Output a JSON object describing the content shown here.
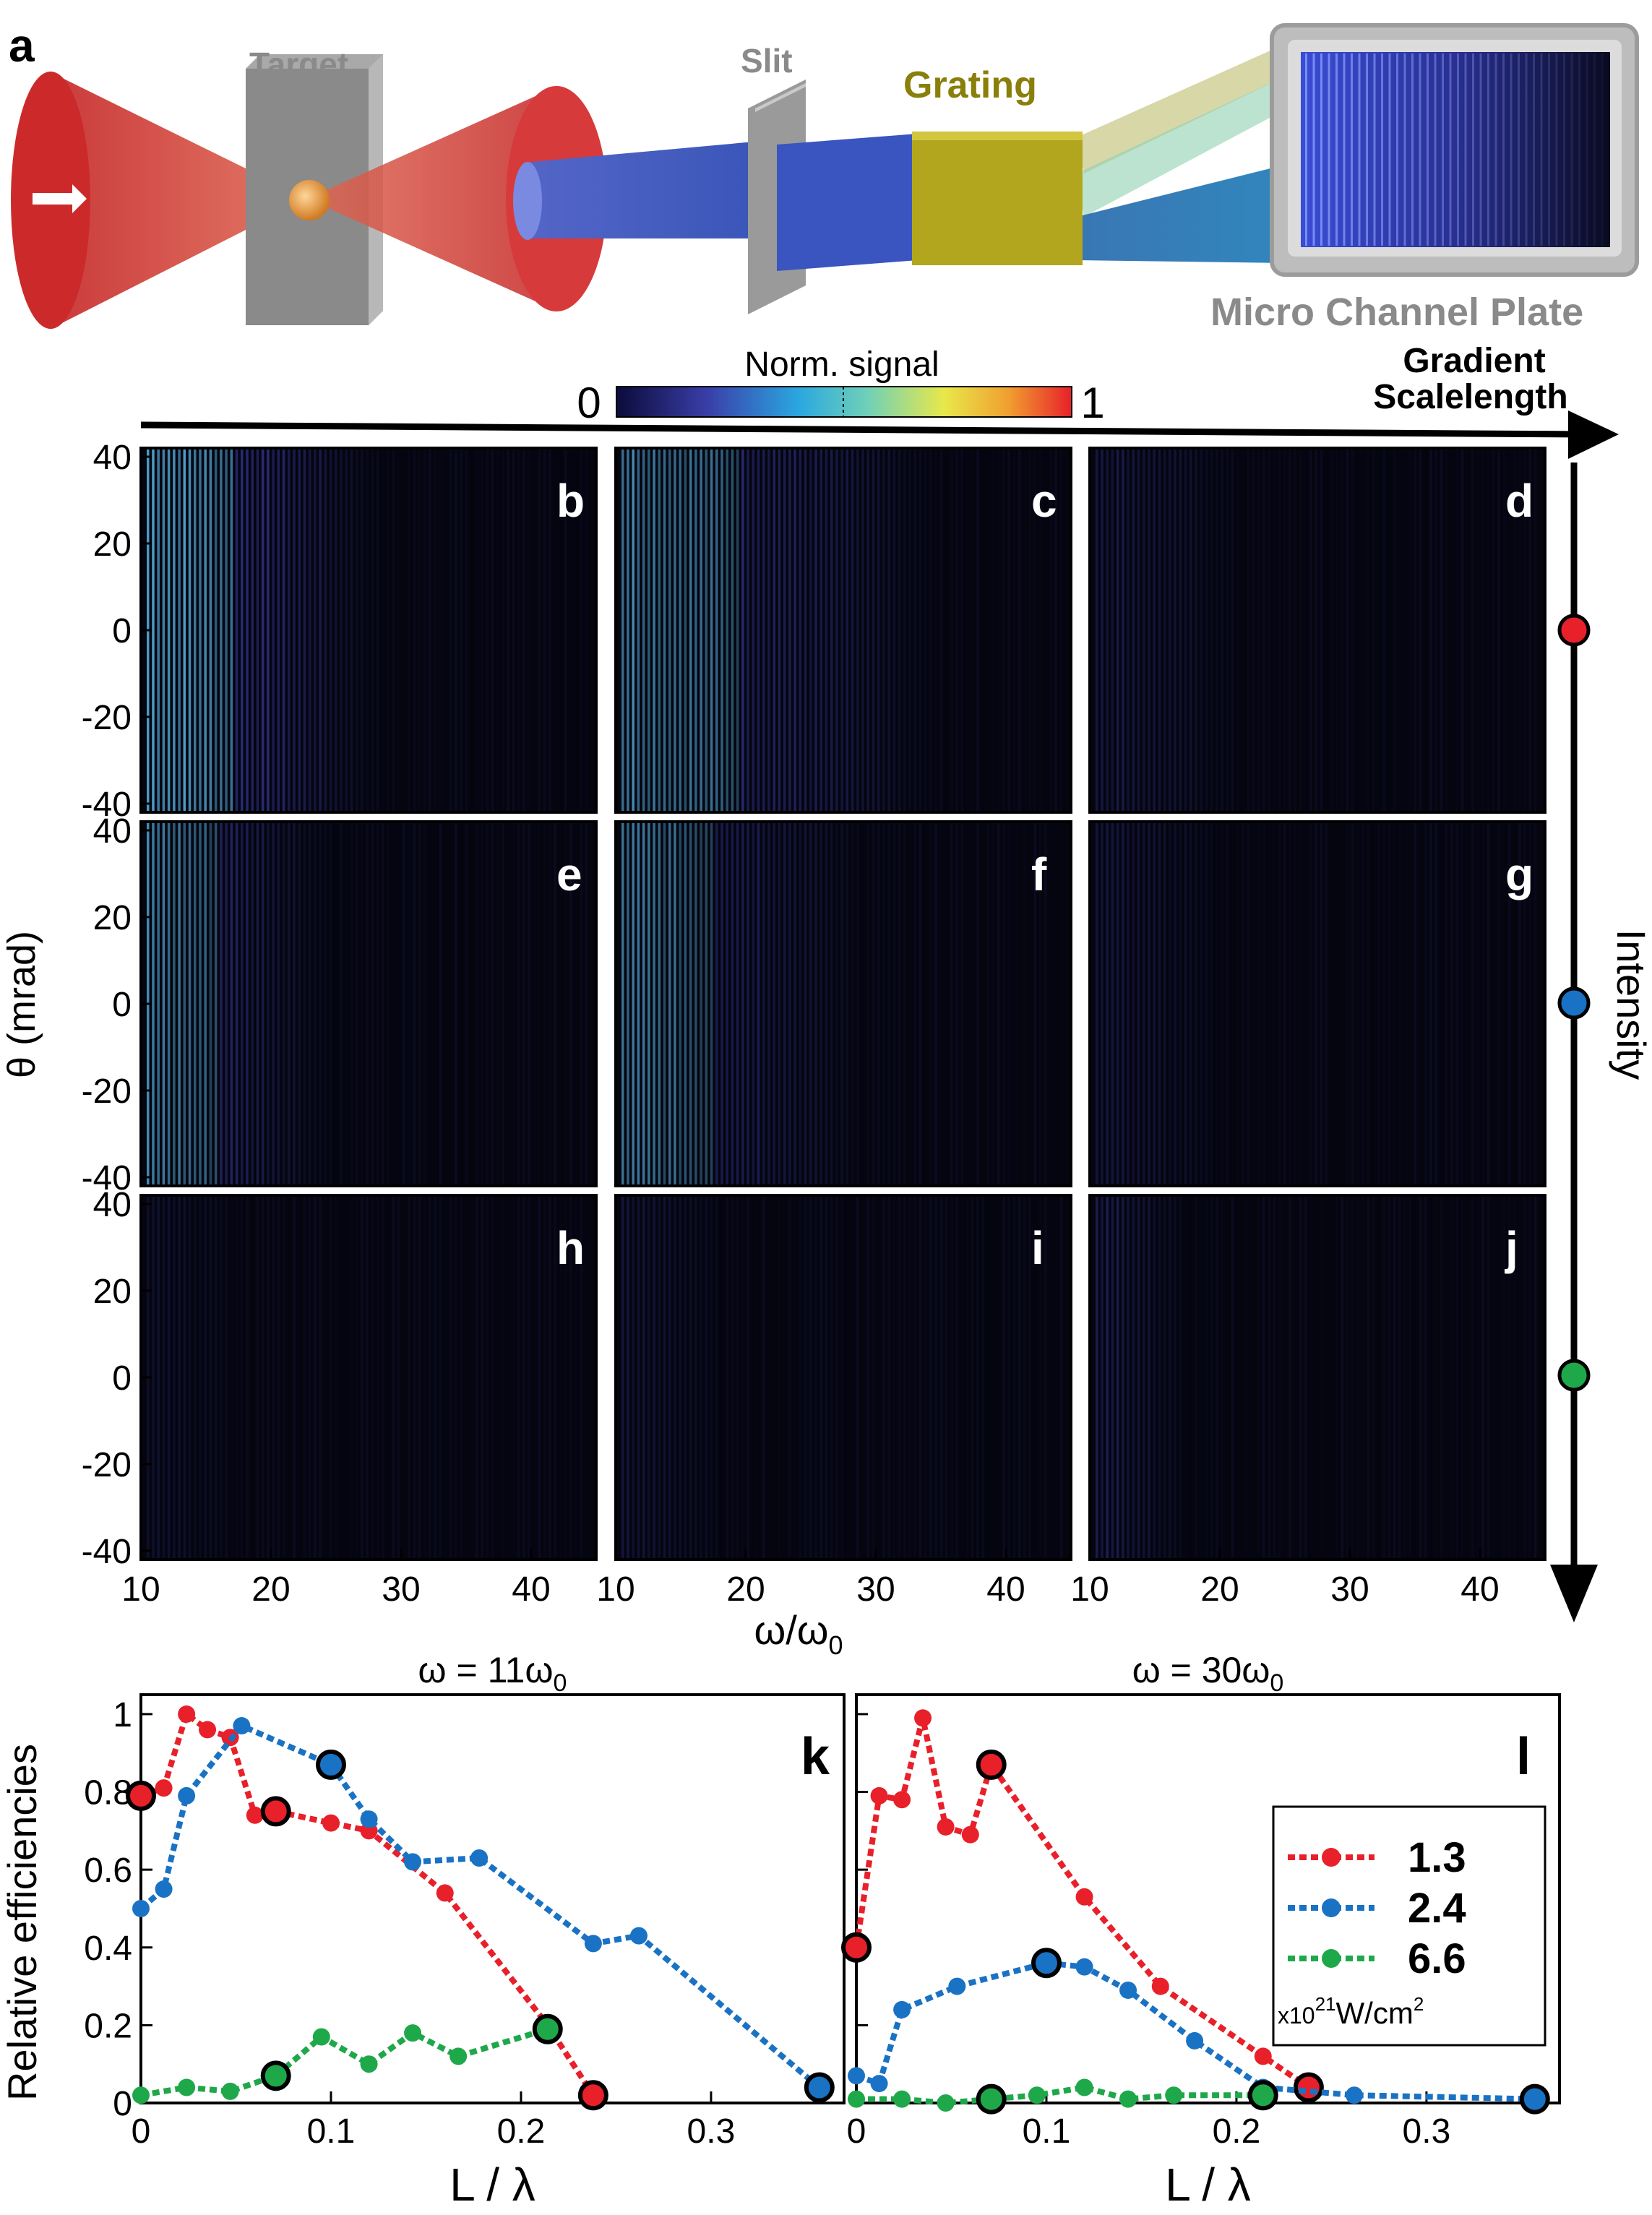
{
  "figure": {
    "panel_a": {
      "letter": "a",
      "labels": {
        "target": "Target",
        "slit": "Slit",
        "grating": "Grating",
        "mcp": "Micro Channel Plate"
      },
      "colors": {
        "laser": "#d63a3a",
        "beam": "#4a63c9",
        "grating": "#b3a61f",
        "target": "#8a8a8a"
      }
    },
    "colorbar": {
      "title": "Norm. signal",
      "min_label": "0",
      "max_label": "1"
    },
    "gradient_axis": {
      "line1": "Gradient",
      "line2": "Scalelength"
    },
    "intensity_axis": {
      "label": "Intensity",
      "marker_colors": [
        "#e8202a",
        "#1a72c4",
        "#1fa84a"
      ]
    },
    "spectra": {
      "ylabel": "θ (mrad)",
      "xlabel": "ω/ω₀",
      "xlabel_main": "ω/ω",
      "xlabel_sub": "0",
      "y_ticks": [
        "40",
        "20",
        "0",
        "-20",
        "-40"
      ],
      "x_ticks": [
        "10",
        "20",
        "30",
        "40"
      ],
      "panel_letters": [
        "b",
        "c",
        "d",
        "e",
        "f",
        "g",
        "h",
        "i",
        "j"
      ]
    }
  },
  "chart_data": [
    {
      "type": "heatmap",
      "title": "Norm. signal",
      "xlabel": "ω/ω0",
      "ylabel": "θ (mrad)",
      "xlim": [
        10,
        45
      ],
      "ylim": [
        -42,
        42
      ],
      "panels": [
        "b",
        "c",
        "d",
        "e",
        "f",
        "g",
        "h",
        "i",
        "j"
      ],
      "rows": "Intensity",
      "columns": "Gradient Scalelength"
    },
    {
      "type": "line",
      "panel": "k",
      "title": "ω = 11ω0",
      "title_main": "ω = 11ω",
      "title_sub": "0",
      "xlabel": "L / λ",
      "ylabel": "Relative efficiencies",
      "xlim": [
        0,
        0.37
      ],
      "ylim": [
        0,
        1.05
      ],
      "x_ticks": [
        "0",
        "0.1",
        "0.2",
        "0.3"
      ],
      "y_ticks": [
        "0",
        "0.2",
        "0.4",
        "0.6",
        "0.8",
        "1"
      ],
      "series": [
        {
          "name": "1.3",
          "color": "#e8202a",
          "x": [
            0,
            0.012,
            0.024,
            0.035,
            0.047,
            0.06,
            0.071,
            0.1,
            0.12,
            0.16,
            0.214,
            0.238
          ],
          "y": [
            0.79,
            0.81,
            1.0,
            0.96,
            0.94,
            0.74,
            0.75,
            0.72,
            0.7,
            0.54,
            0.2,
            0.02
          ],
          "highlight": [
            0,
            6,
            11
          ]
        },
        {
          "name": "2.4",
          "color": "#1a72c4",
          "x": [
            0,
            0.012,
            0.024,
            0.053,
            0.1,
            0.12,
            0.143,
            0.178,
            0.238,
            0.262,
            0.357
          ],
          "y": [
            0.5,
            0.55,
            0.79,
            0.97,
            0.87,
            0.73,
            0.62,
            0.63,
            0.41,
            0.43,
            0.04
          ],
          "highlight": [
            4,
            10
          ]
        },
        {
          "name": "6.6",
          "color": "#1fa84a",
          "x": [
            0,
            0.024,
            0.047,
            0.071,
            0.095,
            0.12,
            0.143,
            0.167,
            0.214
          ],
          "y": [
            0.02,
            0.04,
            0.03,
            0.07,
            0.17,
            0.1,
            0.18,
            0.12,
            0.19
          ],
          "highlight": [
            3,
            8
          ]
        }
      ]
    },
    {
      "type": "line",
      "panel": "l",
      "title": "ω = 30ω0",
      "title_main": "ω = 30ω",
      "title_sub": "0",
      "xlabel": "L / λ",
      "ylabel": "Relative efficiencies",
      "xlim": [
        0,
        0.37
      ],
      "ylim": [
        0,
        1.05
      ],
      "x_ticks": [
        "0",
        "0.1",
        "0.2",
        "0.3"
      ],
      "y_ticks": [],
      "legend": {
        "entries": [
          "1.3",
          "2.4",
          "6.6"
        ],
        "unit_prefix": "x10",
        "unit_exp": "21",
        "unit_rest": "W/cm",
        "unit_exp2": "2",
        "placement": "right"
      },
      "series": [
        {
          "name": "1.3",
          "color": "#e8202a",
          "x": [
            0,
            0.012,
            0.024,
            0.035,
            0.047,
            0.06,
            0.071,
            0.12,
            0.16,
            0.214,
            0.238
          ],
          "y": [
            0.4,
            0.79,
            0.78,
            0.99,
            0.71,
            0.69,
            0.87,
            0.53,
            0.3,
            0.12,
            0.04
          ],
          "highlight": [
            0,
            6,
            10
          ]
        },
        {
          "name": "2.4",
          "color": "#1a72c4",
          "x": [
            0,
            0.012,
            0.024,
            0.053,
            0.1,
            0.12,
            0.143,
            0.178,
            0.214,
            0.262,
            0.357
          ],
          "y": [
            0.07,
            0.05,
            0.24,
            0.3,
            0.36,
            0.35,
            0.29,
            0.16,
            0.04,
            0.02,
            0.01
          ],
          "highlight": [
            4,
            10
          ]
        },
        {
          "name": "6.6",
          "color": "#1fa84a",
          "x": [
            0,
            0.024,
            0.047,
            0.071,
            0.095,
            0.12,
            0.143,
            0.167,
            0.214
          ],
          "y": [
            0.01,
            0.01,
            0.0,
            0.01,
            0.02,
            0.04,
            0.01,
            0.02,
            0.02
          ],
          "highlight": [
            3,
            8
          ]
        }
      ]
    }
  ]
}
